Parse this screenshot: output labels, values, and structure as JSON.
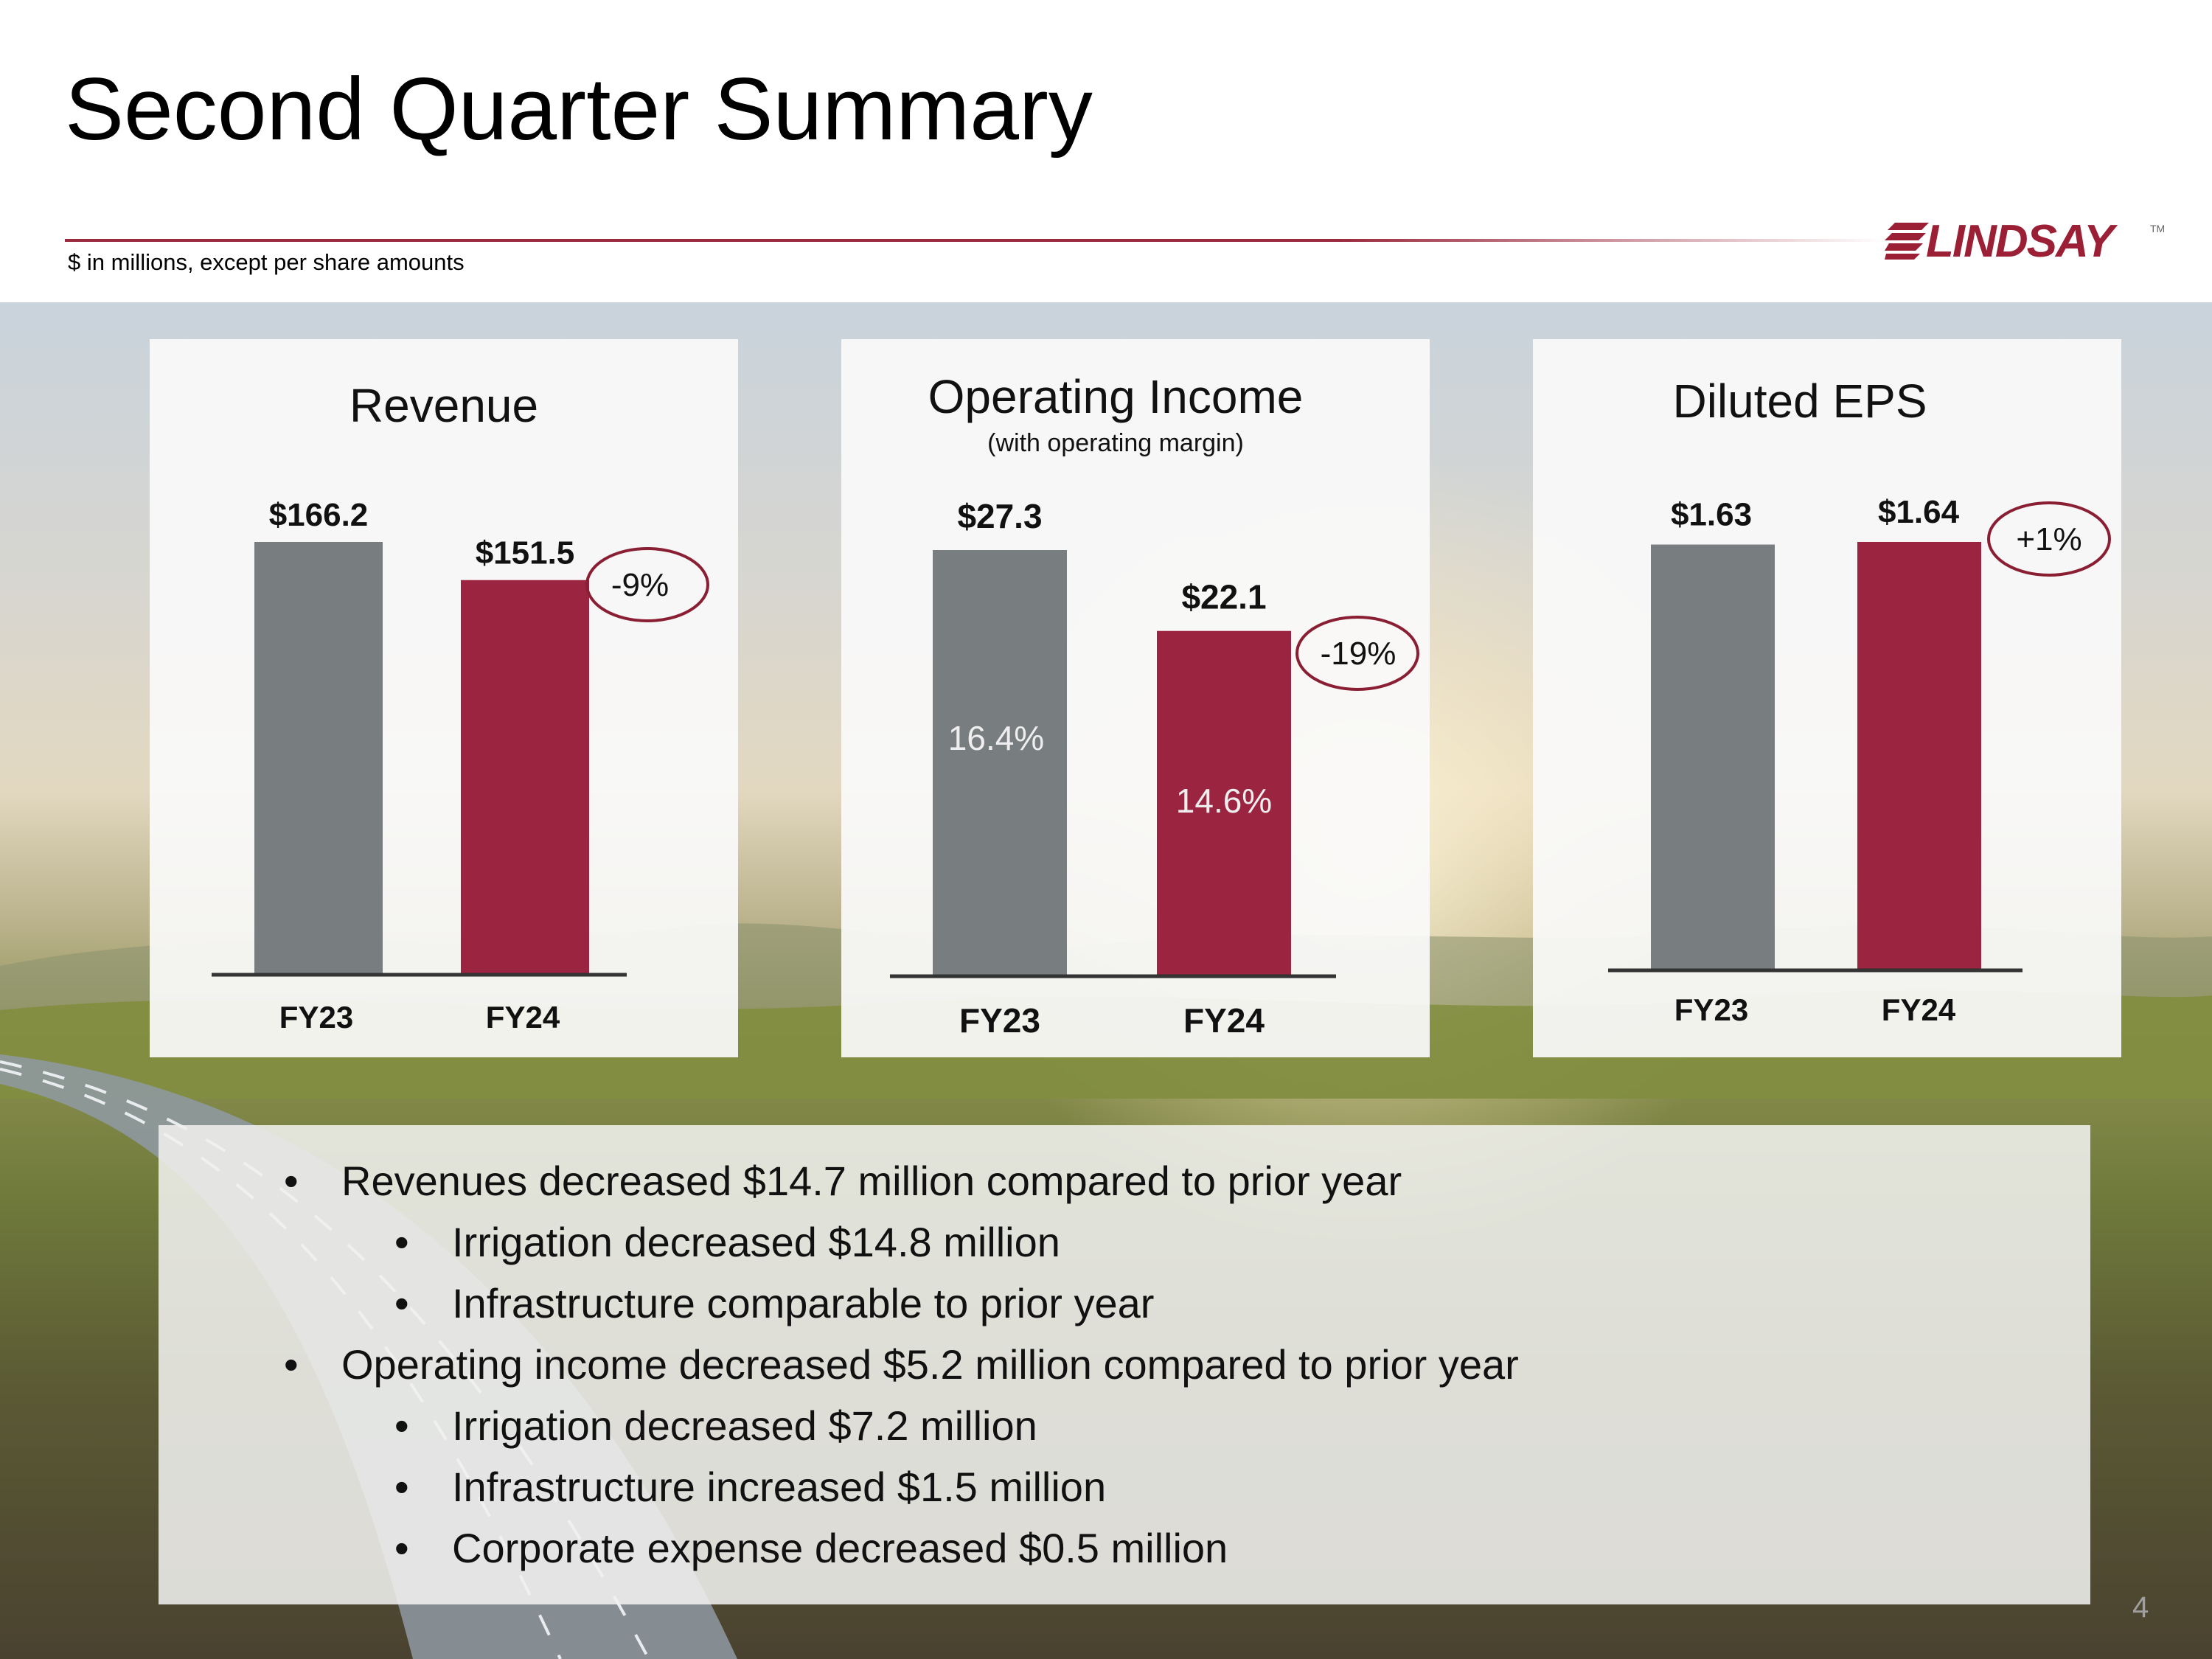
{
  "header": {
    "title": "Second Quarter Summary",
    "subtitle": "$ in millions, except per share amounts",
    "logo_text": "LINDSAY",
    "logo_tm": "TM"
  },
  "colors": {
    "accent": "#9b2a3e",
    "fy23_bar": "#787d7f",
    "fy24_bar": "#9b2440",
    "badge_border": "#8a1f34"
  },
  "chart_data": [
    {
      "type": "bar",
      "title": "Revenue",
      "subtitle": "",
      "categories": [
        "FY23",
        "FY24"
      ],
      "values": [
        166.2,
        151.5
      ],
      "value_labels": [
        "$166.2",
        "$151.5"
      ],
      "inner_labels": [
        "",
        ""
      ],
      "change_label": "-9%",
      "ylim": [
        0,
        166.2
      ]
    },
    {
      "type": "bar",
      "title": "Operating Income",
      "subtitle": "(with operating margin)",
      "categories": [
        "FY23",
        "FY24"
      ],
      "values": [
        27.3,
        22.1
      ],
      "value_labels": [
        "$27.3",
        "$22.1"
      ],
      "inner_labels": [
        "16.4%",
        "14.6%"
      ],
      "change_label": "-19%",
      "ylim": [
        0,
        27.3
      ]
    },
    {
      "type": "bar",
      "title": "Diluted EPS",
      "subtitle": "",
      "categories": [
        "FY23",
        "FY24"
      ],
      "values": [
        1.63,
        1.64
      ],
      "value_labels": [
        "$1.63",
        "$1.64"
      ],
      "inner_labels": [
        "",
        ""
      ],
      "change_label": "+1%",
      "ylim": [
        0,
        1.64
      ]
    }
  ],
  "notes": {
    "bullet_char": "•",
    "items": [
      {
        "text": "Revenues decreased $14.7 million compared to prior year",
        "level": 0
      },
      {
        "text": "Irrigation decreased $14.8 million",
        "level": 1
      },
      {
        "text": "Infrastructure comparable to prior year",
        "level": 1
      },
      {
        "text": "Operating income decreased $5.2 million compared to prior year",
        "level": 0
      },
      {
        "text": "Irrigation decreased $7.2 million",
        "level": 1
      },
      {
        "text": "Infrastructure increased $1.5 million",
        "level": 1
      },
      {
        "text": "Corporate expense decreased $0.5 million",
        "level": 1
      }
    ]
  },
  "page_number": "4"
}
